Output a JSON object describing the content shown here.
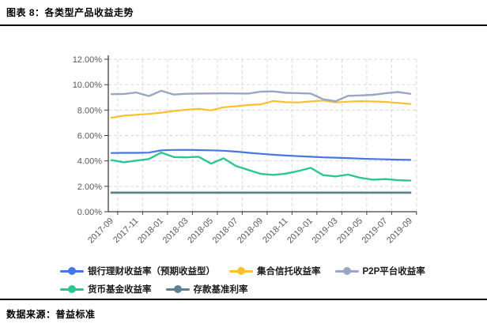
{
  "header": {
    "title": "图表 8：各类型产品收益走势"
  },
  "footer": {
    "source": "数据来源：普益标准"
  },
  "chart_data": {
    "type": "line",
    "title": "各类型产品收益走势",
    "xlabel": "",
    "ylabel": "",
    "ylim": [
      0,
      12
    ],
    "y_tick_step": 2,
    "grid": true,
    "legend_position": "bottom",
    "y_tick_labels": [
      "12.00%",
      "10.00%",
      "8.00%",
      "6.00%",
      "4.00%",
      "2.00%",
      "0.00%"
    ],
    "x_tick_labels": [
      "2017-09",
      "2017-11",
      "2018-01",
      "2018-03",
      "2018-05",
      "2018-07",
      "2018-09",
      "2018-11",
      "2019-01",
      "2019-03",
      "2019-05",
      "2019-07",
      "2019-09"
    ],
    "categories": [
      "2017-09",
      "2017-10",
      "2017-11",
      "2017-12",
      "2018-01",
      "2018-02",
      "2018-03",
      "2018-04",
      "2018-05",
      "2018-06",
      "2018-07",
      "2018-08",
      "2018-09",
      "2018-10",
      "2018-11",
      "2018-12",
      "2019-01",
      "2019-02",
      "2019-03",
      "2019-04",
      "2019-05",
      "2019-06",
      "2019-07",
      "2019-08",
      "2019-09"
    ],
    "series": [
      {
        "key": "bank-wm",
        "name": "银行理财收益率（预期收益型）",
        "color": "#4575e7",
        "values": [
          4.62,
          4.63,
          4.63,
          4.65,
          4.83,
          4.86,
          4.87,
          4.85,
          4.83,
          4.8,
          4.73,
          4.64,
          4.56,
          4.48,
          4.42,
          4.37,
          4.33,
          4.28,
          4.25,
          4.22,
          4.18,
          4.15,
          4.12,
          4.1,
          4.08
        ]
      },
      {
        "key": "trust",
        "name": "集合信托收益率",
        "color": "#fcc02b",
        "values": [
          7.4,
          7.56,
          7.63,
          7.7,
          7.8,
          7.93,
          8.03,
          8.1,
          7.98,
          8.22,
          8.3,
          8.4,
          8.45,
          8.72,
          8.62,
          8.6,
          8.68,
          8.75,
          8.6,
          8.66,
          8.7,
          8.68,
          8.64,
          8.56,
          8.48
        ]
      },
      {
        "key": "p2p",
        "name": "P2P平台收益率",
        "color": "#9aa6c6",
        "values": [
          9.25,
          9.27,
          9.38,
          9.1,
          9.52,
          9.22,
          9.28,
          9.3,
          9.31,
          9.32,
          9.31,
          9.3,
          9.45,
          9.47,
          9.36,
          9.33,
          9.3,
          8.85,
          8.7,
          9.12,
          9.15,
          9.2,
          9.32,
          9.42,
          9.28
        ]
      },
      {
        "key": "money-fund",
        "name": "货币基金收益率",
        "color": "#2cc790",
        "values": [
          4.06,
          3.89,
          4.02,
          4.15,
          4.66,
          4.3,
          4.28,
          4.33,
          3.78,
          4.2,
          3.6,
          3.28,
          2.98,
          2.9,
          3.0,
          3.2,
          3.45,
          2.88,
          2.78,
          2.92,
          2.67,
          2.52,
          2.57,
          2.48,
          2.45
        ]
      },
      {
        "key": "deposit-rate",
        "name": "存款基准利率",
        "color": "#5e808f",
        "values": [
          1.5,
          1.5,
          1.5,
          1.5,
          1.5,
          1.5,
          1.5,
          1.5,
          1.5,
          1.5,
          1.5,
          1.5,
          1.5,
          1.5,
          1.5,
          1.5,
          1.5,
          1.5,
          1.5,
          1.5,
          1.5,
          1.5,
          1.5,
          1.5,
          1.5
        ]
      }
    ]
  }
}
